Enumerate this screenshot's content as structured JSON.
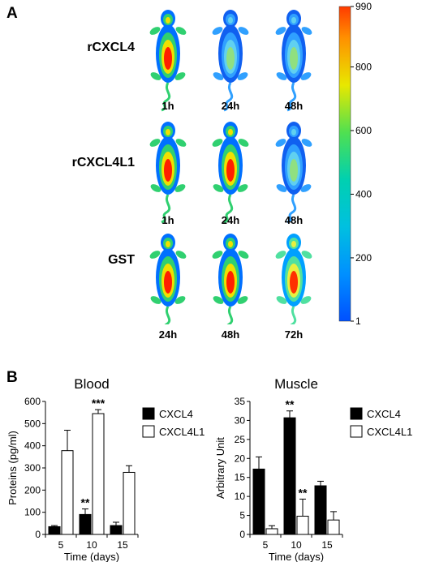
{
  "panel_a": {
    "letter": "A",
    "rows": [
      {
        "label": "rCXCL4",
        "timepoints": [
          "1h",
          "24h",
          "48h"
        ],
        "intensity": [
          "high",
          "low",
          "low"
        ]
      },
      {
        "label": "rCXCL4L1",
        "timepoints": [
          "1h",
          "24h",
          "48h"
        ],
        "intensity": [
          "high",
          "high",
          "low"
        ]
      },
      {
        "label": "GST",
        "timepoints": [
          "24h",
          "48h",
          "72h"
        ],
        "intensity": [
          "high",
          "high",
          "medium"
        ]
      }
    ],
    "colorbar": {
      "ticks": [
        "990",
        "800",
        "600",
        "400",
        "200",
        "1"
      ],
      "colors": [
        "#ff3b00",
        "#ff9000",
        "#e8e800",
        "#50e050",
        "#00c8c8",
        "#0060ff"
      ]
    }
  },
  "panel_b": {
    "letter": "B",
    "legend": {
      "cxcl4": "CXCL4",
      "cxcl4l1": "CXCL4L1"
    }
  },
  "chart_data": [
    {
      "type": "bar",
      "title": "Blood",
      "xlabel": "Time (days)",
      "ylabel": "Proteins (pg/ml)",
      "ylim": [
        0,
        600
      ],
      "yticks": [
        "0",
        "100",
        "200",
        "300",
        "400",
        "500",
        "600"
      ],
      "categories": [
        "5",
        "10",
        "15"
      ],
      "series": [
        {
          "name": "CXCL4",
          "color": "#000000",
          "values": [
            35,
            90,
            40
          ],
          "errors": [
            5,
            25,
            15
          ]
        },
        {
          "name": "CXCL4L1",
          "color": "#ffffff",
          "values": [
            378,
            545,
            280
          ],
          "errors": [
            92,
            18,
            30
          ]
        }
      ],
      "annotations": [
        {
          "series": 0,
          "category": 1,
          "text": "**"
        },
        {
          "series": 1,
          "category": 1,
          "text": "***"
        }
      ]
    },
    {
      "type": "bar",
      "title": "Muscle",
      "xlabel": "Time (days)",
      "ylabel": "Arbitrary Unit",
      "ylim": [
        0,
        35
      ],
      "yticks": [
        "0",
        "5",
        "10",
        "15",
        "20",
        "25",
        "30",
        "35"
      ],
      "categories": [
        "5",
        "10",
        "15"
      ],
      "series": [
        {
          "name": "CXCL4",
          "color": "#000000",
          "values": [
            17.2,
            30.7,
            12.8
          ],
          "errors": [
            3.2,
            1.8,
            1.2
          ]
        },
        {
          "name": "CXCL4L1",
          "color": "#ffffff",
          "values": [
            1.5,
            4.8,
            3.8
          ],
          "errors": [
            0.8,
            4.5,
            2.2
          ]
        }
      ],
      "annotations": [
        {
          "series": 0,
          "category": 1,
          "text": "**"
        },
        {
          "series": 1,
          "category": 1,
          "text": "**"
        }
      ]
    }
  ]
}
